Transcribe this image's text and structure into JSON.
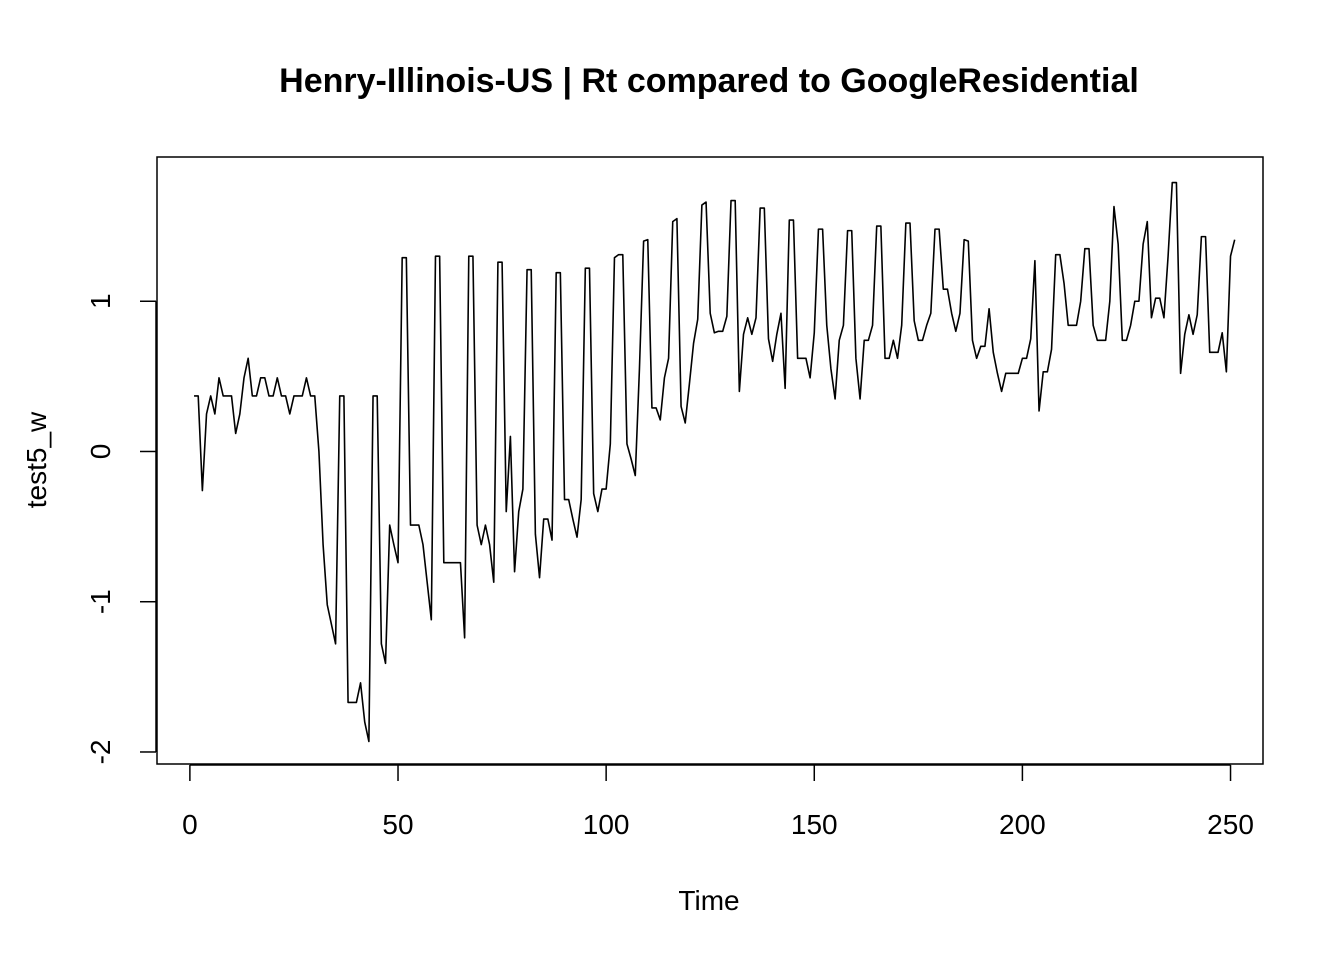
{
  "chart_data": {
    "type": "line",
    "title": "Henry-Illinois-US | Rt compared to GoogleResidential",
    "xlabel": "Time",
    "ylabel": "test5_w",
    "xlim": [
      -7.9,
      257.8
    ],
    "ylim": [
      -2.08,
      1.96
    ],
    "x_ticks": [
      0,
      50,
      100,
      150,
      200,
      250
    ],
    "y_ticks": [
      -2,
      -1,
      0,
      1
    ],
    "x_tick_labels": [
      "0",
      "50",
      "100",
      "150",
      "200",
      "250"
    ],
    "y_tick_labels": [
      "-2",
      "-1",
      "0",
      "1"
    ],
    "grid": false,
    "x_start": 1,
    "values": [
      0.37,
      0.37,
      -0.26,
      0.25,
      0.37,
      0.25,
      0.49,
      0.37,
      0.37,
      0.37,
      0.12,
      0.25,
      0.49,
      0.62,
      0.37,
      0.37,
      0.49,
      0.49,
      0.37,
      0.37,
      0.49,
      0.37,
      0.37,
      0.25,
      0.37,
      0.37,
      0.37,
      0.49,
      0.37,
      0.37,
      0.0,
      -0.62,
      -1.02,
      -1.15,
      -1.28,
      0.37,
      0.37,
      -1.67,
      -1.67,
      -1.67,
      -1.54,
      -1.8,
      -1.93,
      0.37,
      0.37,
      -1.28,
      -1.41,
      -0.49,
      -0.62,
      -0.74,
      1.29,
      1.29,
      -0.49,
      -0.49,
      -0.49,
      -0.62,
      -0.87,
      -1.12,
      1.3,
      1.3,
      -0.74,
      -0.74,
      -0.74,
      -0.74,
      -0.74,
      -1.24,
      1.3,
      1.3,
      -0.49,
      -0.62,
      -0.49,
      -0.62,
      -0.87,
      1.26,
      1.26,
      -0.4,
      0.1,
      -0.8,
      -0.4,
      -0.25,
      1.21,
      1.21,
      -0.55,
      -0.84,
      -0.45,
      -0.45,
      -0.59,
      1.19,
      1.19,
      -0.32,
      -0.32,
      -0.45,
      -0.57,
      -0.32,
      1.22,
      1.22,
      -0.28,
      -0.4,
      -0.25,
      -0.25,
      0.05,
      1.29,
      1.31,
      1.31,
      0.05,
      -0.05,
      -0.16,
      0.55,
      1.4,
      1.41,
      0.29,
      0.29,
      0.21,
      0.49,
      0.62,
      1.53,
      1.55,
      0.3,
      0.19,
      0.45,
      0.72,
      0.88,
      1.64,
      1.66,
      0.92,
      0.79,
      0.8,
      0.8,
      0.9,
      1.67,
      1.67,
      0.4,
      0.78,
      0.89,
      0.78,
      0.89,
      1.62,
      1.62,
      0.75,
      0.6,
      0.78,
      0.92,
      0.42,
      1.54,
      1.54,
      0.62,
      0.62,
      0.62,
      0.49,
      0.79,
      1.48,
      1.48,
      0.84,
      0.55,
      0.35,
      0.74,
      0.84,
      1.47,
      1.47,
      0.62,
      0.35,
      0.74,
      0.74,
      0.84,
      1.5,
      1.5,
      0.62,
      0.62,
      0.74,
      0.62,
      0.84,
      1.52,
      1.52,
      0.87,
      0.74,
      0.74,
      0.84,
      0.92,
      1.48,
      1.48,
      1.08,
      1.08,
      0.92,
      0.8,
      0.92,
      1.41,
      1.4,
      0.74,
      0.62,
      0.7,
      0.7,
      0.95,
      0.66,
      0.52,
      0.4,
      0.52,
      0.52,
      0.52,
      0.52,
      0.62,
      0.62,
      0.75,
      1.27,
      0.27,
      0.53,
      0.53,
      0.68,
      1.31,
      1.31,
      1.12,
      0.84,
      0.84,
      0.84,
      1.0,
      1.35,
      1.35,
      0.84,
      0.74,
      0.74,
      0.74,
      1.0,
      1.63,
      1.38,
      0.74,
      0.74,
      0.84,
      1.0,
      1.0,
      1.38,
      1.53,
      0.89,
      1.02,
      1.02,
      0.89,
      1.3,
      1.79,
      1.79,
      0.52,
      0.78,
      0.91,
      0.78,
      0.91,
      1.43,
      1.43,
      0.66,
      0.66,
      0.66,
      0.79,
      0.53,
      1.3,
      1.41
    ]
  }
}
